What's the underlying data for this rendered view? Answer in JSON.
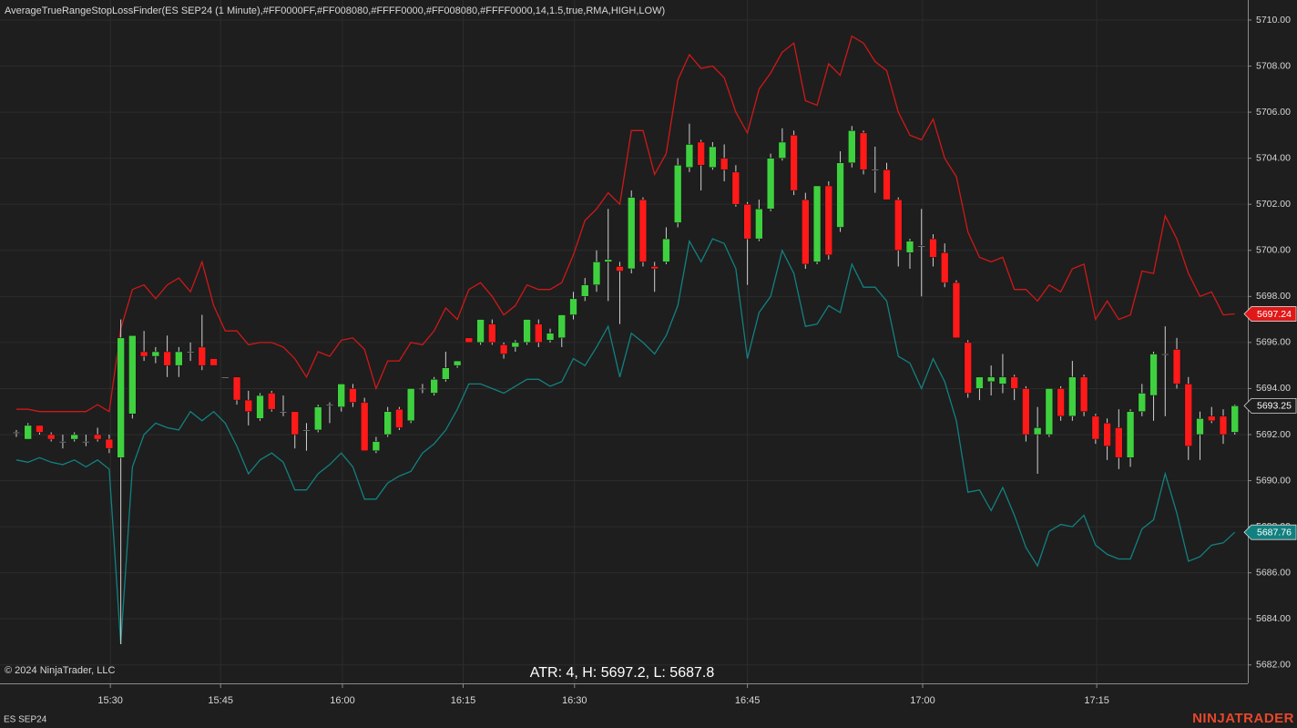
{
  "chart_data": {
    "type": "candlestick",
    "title": "AverageTrueRangeStopLossFinder(ES SEP24 (1 Minute),#FF0000FF,#FF008080,#FFFF0000,#FF008080,#FFFF0000,14,1.5,true,RMA,HIGH,LOW)",
    "annotation": "ATR: 4, H: 5697.2, L: 5687.8",
    "copyright": "© 2024 NinjaTrader, LLC",
    "instrument": "ES SEP24",
    "brand": "NINJATRADER",
    "up_color": "#3fd03f",
    "down_color": "#ff1a1a",
    "wick_color": "#d0d0d0",
    "open": [
      5692.1,
      5691.8,
      5692.4,
      5692.0,
      5691.7,
      5691.8,
      5691.7,
      5692.0,
      5691.8,
      5691.0,
      5692.9,
      5695.6,
      5695.4,
      5695.6,
      5695.0,
      5695.6,
      5695.8,
      5695.3,
      5694.5,
      5694.5,
      5693.5,
      5692.7,
      5693.8,
      5693.0,
      5693.0,
      5692.2,
      5692.2,
      5693.3,
      5693.2,
      5694.0,
      5693.4,
      5691.3,
      5692.0,
      5693.1,
      5692.6,
      5694.0,
      5693.8,
      5694.4,
      5695.0,
      5696.2,
      5696.0,
      5696.8,
      5695.9,
      5695.8,
      5696.0,
      5696.8,
      5696.1,
      5696.2,
      5697.2,
      5698.0,
      5698.5,
      5699.5,
      5699.3,
      5699.2,
      5702.2,
      5699.3,
      5699.5,
      5701.2,
      5703.6,
      5704.7,
      5703.6,
      5704.0,
      5703.4,
      5702.0,
      5700.5,
      5701.8,
      5704.0,
      5705.0,
      5702.2,
      5699.5,
      5702.8,
      5701.0,
      5703.8,
      5705.1,
      5703.5,
      5703.5,
      5702.2,
      5699.9,
      5700.2,
      5700.5,
      5699.9,
      5698.6,
      5696.0,
      5694.0,
      5694.3,
      5694.2,
      5694.5,
      5694.0,
      5692.0,
      5692.0,
      5694.0,
      5692.8,
      5694.5,
      5692.8,
      5692.5,
      5692.3,
      5691.0,
      5693.0,
      5693.7,
      5695.5,
      5695.7,
      5694.2,
      5692.0,
      5692.8,
      5692.8,
      5692.1
    ],
    "high": [
      5692.2,
      5692.5,
      5692.4,
      5692.1,
      5692.0,
      5692.1,
      5692.0,
      5692.3,
      5692.0,
      5697.0,
      5696.3,
      5696.5,
      5695.8,
      5696.3,
      5695.8,
      5696.0,
      5697.2,
      5695.3,
      5694.5,
      5694.5,
      5693.9,
      5693.8,
      5693.9,
      5693.7,
      5693.0,
      5692.5,
      5693.3,
      5693.4,
      5694.2,
      5694.2,
      5693.6,
      5691.9,
      5693.2,
      5693.2,
      5694.0,
      5694.2,
      5694.5,
      5695.6,
      5695.2,
      5696.2,
      5697.0,
      5697.0,
      5696.0,
      5696.1,
      5697.0,
      5697.0,
      5696.6,
      5697.2,
      5698.2,
      5698.8,
      5700.0,
      5701.8,
      5699.5,
      5702.6,
      5702.3,
      5699.5,
      5701.0,
      5704.0,
      5705.5,
      5704.8,
      5704.7,
      5704.6,
      5703.7,
      5702.1,
      5702.2,
      5704.2,
      5705.3,
      5705.2,
      5702.5,
      5702.8,
      5703.0,
      5704.3,
      5705.4,
      5705.2,
      5704.5,
      5703.8,
      5702.3,
      5700.5,
      5701.8,
      5700.7,
      5700.3,
      5698.7,
      5696.1,
      5694.5,
      5695.0,
      5695.5,
      5694.6,
      5694.1,
      5693.2,
      5694.0,
      5694.1,
      5695.2,
      5694.6,
      5692.9,
      5692.7,
      5693.1,
      5693.1,
      5694.2,
      5695.6,
      5696.7,
      5696.2,
      5694.5,
      5693.0,
      5693.2,
      5693.1,
      5693.3
    ],
    "low": [
      5691.9,
      5691.8,
      5692.0,
      5691.7,
      5691.4,
      5691.7,
      5691.5,
      5691.7,
      5691.2,
      5682.9,
      5692.7,
      5695.2,
      5695.1,
      5694.5,
      5694.5,
      5695.2,
      5694.8,
      5695.0,
      5694.5,
      5693.3,
      5692.4,
      5692.6,
      5693.0,
      5692.8,
      5691.4,
      5691.3,
      5692.1,
      5692.5,
      5693.0,
      5693.2,
      5691.3,
      5691.2,
      5691.9,
      5692.2,
      5692.5,
      5693.8,
      5693.7,
      5694.3,
      5694.9,
      5696.0,
      5695.9,
      5695.9,
      5695.3,
      5695.6,
      5695.9,
      5695.8,
      5696.0,
      5695.8,
      5697.0,
      5697.8,
      5698.2,
      5697.8,
      5696.8,
      5699.0,
      5699.3,
      5698.2,
      5699.4,
      5701.0,
      5703.4,
      5702.6,
      5703.5,
      5703.0,
      5701.9,
      5698.5,
      5700.4,
      5701.7,
      5703.9,
      5702.4,
      5699.2,
      5699.4,
      5699.6,
      5700.8,
      5703.6,
      5703.3,
      5702.5,
      5702.2,
      5699.3,
      5699.2,
      5698.0,
      5699.3,
      5698.4,
      5696.2,
      5693.6,
      5693.5,
      5693.7,
      5693.8,
      5693.5,
      5691.7,
      5690.3,
      5691.9,
      5692.6,
      5692.6,
      5692.8,
      5691.6,
      5690.9,
      5690.5,
      5690.6,
      5692.8,
      5692.6,
      5692.8,
      5694.0,
      5690.9,
      5690.9,
      5692.5,
      5691.6,
      5692.0
    ],
    "close": [
      5692.1,
      5692.4,
      5692.1,
      5691.8,
      5691.7,
      5692.0,
      5691.7,
      5691.8,
      5691.4,
      5696.2,
      5696.3,
      5695.4,
      5695.6,
      5695.0,
      5695.6,
      5695.6,
      5695.0,
      5695.0,
      5694.5,
      5693.5,
      5693.0,
      5693.7,
      5693.1,
      5693.0,
      5692.0,
      5692.2,
      5693.2,
      5693.3,
      5694.2,
      5693.4,
      5691.3,
      5691.7,
      5693.0,
      5692.3,
      5694.0,
      5694.0,
      5694.4,
      5694.9,
      5695.2,
      5696.0,
      5697.0,
      5696.0,
      5695.5,
      5696.0,
      5697.0,
      5696.0,
      5696.4,
      5697.2,
      5697.9,
      5698.5,
      5699.5,
      5699.6,
      5699.1,
      5702.3,
      5699.5,
      5699.2,
      5700.5,
      5703.7,
      5704.6,
      5703.7,
      5704.5,
      5703.5,
      5702.0,
      5700.5,
      5701.8,
      5704.0,
      5704.7,
      5702.6,
      5699.4,
      5702.8,
      5699.8,
      5703.8,
      5705.2,
      5703.5,
      5703.5,
      5702.2,
      5700.0,
      5700.4,
      5700.2,
      5699.7,
      5698.6,
      5696.2,
      5693.8,
      5694.5,
      5694.5,
      5694.5,
      5694.0,
      5692.0,
      5692.3,
      5694.0,
      5692.8,
      5694.5,
      5693.0,
      5691.8,
      5691.5,
      5691.0,
      5693.0,
      5693.8,
      5695.5,
      5695.5,
      5694.2,
      5691.5,
      5692.7,
      5692.6,
      5692.0,
      5693.25
    ],
    "series": [
      {
        "color": "#d01818",
        "values": [
          5693.1,
          5693.1,
          5693.0,
          5693.0,
          5693.0,
          5693.0,
          5693.0,
          5693.3,
          5693.0,
          5696.6,
          5698.3,
          5698.5,
          5697.9,
          5698.5,
          5698.8,
          5698.2,
          5699.5,
          5697.6,
          5696.5,
          5696.5,
          5695.9,
          5696.0,
          5696.0,
          5695.8,
          5695.3,
          5694.5,
          5695.6,
          5695.4,
          5696.1,
          5696.2,
          5695.7,
          5694.0,
          5695.2,
          5695.2,
          5696.0,
          5695.9,
          5696.5,
          5697.5,
          5697.0,
          5698.3,
          5698.6,
          5698.0,
          5697.2,
          5697.6,
          5698.5,
          5698.3,
          5698.3,
          5698.6,
          5699.8,
          5701.3,
          5701.8,
          5702.5,
          5702.0,
          5705.2,
          5705.2,
          5703.3,
          5704.2,
          5707.4,
          5708.5,
          5707.9,
          5708.0,
          5707.5,
          5706.0,
          5705.1,
          5707.0,
          5707.7,
          5708.6,
          5709.0,
          5706.5,
          5706.3,
          5708.1,
          5707.6,
          5709.3,
          5709.0,
          5708.2,
          5707.8,
          5706.0,
          5705.0,
          5704.8,
          5705.7,
          5704.0,
          5703.2,
          5700.8,
          5699.7,
          5699.5,
          5699.7,
          5698.3,
          5698.3,
          5697.8,
          5698.5,
          5698.2,
          5699.2,
          5699.4,
          5697.0,
          5697.8,
          5697.0,
          5697.2,
          5699.1,
          5699.0,
          5701.5,
          5700.5,
          5699.0,
          5698.0,
          5698.2,
          5697.2,
          5697.24
        ]
      },
      {
        "color": "#138080",
        "values": [
          5690.9,
          5690.8,
          5691.0,
          5690.8,
          5690.7,
          5690.9,
          5690.6,
          5690.9,
          5690.5,
          5682.9,
          5690.6,
          5692.0,
          5692.5,
          5692.3,
          5692.2,
          5693.0,
          5692.6,
          5693.0,
          5692.5,
          5691.5,
          5690.3,
          5690.9,
          5691.2,
          5690.8,
          5689.6,
          5689.6,
          5690.3,
          5690.7,
          5691.2,
          5690.6,
          5689.2,
          5689.2,
          5689.9,
          5690.2,
          5690.4,
          5691.2,
          5691.6,
          5692.2,
          5693.1,
          5694.2,
          5694.2,
          5694.0,
          5693.8,
          5694.1,
          5694.4,
          5694.4,
          5694.1,
          5694.3,
          5695.3,
          5695.0,
          5695.8,
          5696.7,
          5694.5,
          5696.4,
          5696.0,
          5695.5,
          5696.3,
          5697.6,
          5700.4,
          5699.5,
          5700.5,
          5700.3,
          5699.2,
          5695.3,
          5697.3,
          5698.0,
          5700.0,
          5699.0,
          5696.7,
          5696.8,
          5697.6,
          5697.3,
          5699.4,
          5698.4,
          5698.4,
          5697.8,
          5695.4,
          5695.1,
          5694.0,
          5695.3,
          5694.3,
          5692.6,
          5689.5,
          5689.6,
          5688.7,
          5689.7,
          5688.5,
          5687.1,
          5686.3,
          5687.8,
          5688.1,
          5688.0,
          5688.5,
          5687.2,
          5686.8,
          5686.6,
          5686.6,
          5687.9,
          5688.3,
          5690.3,
          5688.6,
          5686.5,
          5686.7,
          5687.2,
          5687.3,
          5687.76
        ]
      }
    ],
    "price_markers": [
      {
        "value": 5697.24,
        "color": "#e01818"
      },
      {
        "value": 5693.25,
        "color": "#1e1e1e"
      },
      {
        "value": 5687.76,
        "color": "#138080"
      }
    ],
    "ylim": [
      5681.2,
      5710.87
    ],
    "yticks": [
      {
        "value": 5682,
        "label": "5682.00"
      },
      {
        "value": 5684,
        "label": "5684.00"
      },
      {
        "value": 5686,
        "label": "5686.00"
      },
      {
        "value": 5688,
        "label": "5688.00"
      },
      {
        "value": 5690,
        "label": "5690.00"
      },
      {
        "value": 5692,
        "label": "5692.00"
      },
      {
        "value": 5694,
        "label": "5694.00"
      },
      {
        "value": 5696,
        "label": "5696.00"
      },
      {
        "value": 5698,
        "label": "5698.00"
      },
      {
        "value": 5700,
        "label": "5700.00"
      },
      {
        "value": 5702,
        "label": "5702.00"
      },
      {
        "value": 5704,
        "label": "5704.00"
      },
      {
        "value": 5706,
        "label": "5706.00"
      },
      {
        "value": 5708,
        "label": "5708.00"
      },
      {
        "value": 5710,
        "label": "5710.00"
      }
    ],
    "xlim": [
      -1.41,
      106.12
    ],
    "xticks": [
      {
        "value": 8.1,
        "label": "15:30"
      },
      {
        "value": 17.6,
        "label": "15:45"
      },
      {
        "value": 28.1,
        "label": "16:00"
      },
      {
        "value": 38.5,
        "label": "16:15"
      },
      {
        "value": 48.1,
        "label": "16:30"
      },
      {
        "value": 63.0,
        "label": "16:45"
      },
      {
        "value": 78.1,
        "label": "17:00"
      },
      {
        "value": 93.1,
        "label": "17:15"
      }
    ],
    "grid": true
  }
}
